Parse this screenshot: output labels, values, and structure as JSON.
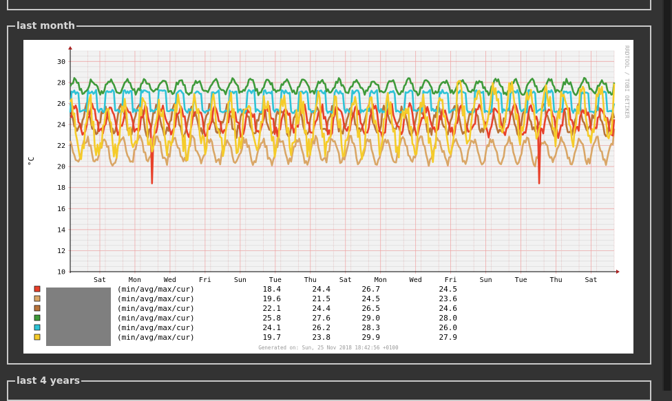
{
  "sections": [
    {
      "title": "last month"
    },
    {
      "title": "last 4 years"
    }
  ],
  "chart_data": {
    "type": "line",
    "title": "",
    "ylabel": "°C",
    "xlabel": "",
    "ylim": [
      10,
      31
    ],
    "yticks": [
      10,
      12,
      14,
      16,
      18,
      20,
      22,
      24,
      26,
      28,
      30
    ],
    "x_tick_labels": [
      "Sat",
      "Mon",
      "Wed",
      "Fri",
      "Sun",
      "Tue",
      "Thu",
      "Sat",
      "Mon",
      "Wed",
      "Fri",
      "Sun",
      "Tue",
      "Thu",
      "Sat"
    ],
    "grid": true,
    "watermark": "RRDTOOL / TOBI OETIKER",
    "footer": "Generated on: Sun, 25 Nov 2018 18:42:56 +0100",
    "legend_suffix": "(min/avg/max/cur)",
    "series": [
      {
        "color": "#e8402a",
        "min": "18.4",
        "avg": "24.4",
        "max": "26.7",
        "cur": "24.5"
      },
      {
        "color": "#d9a666",
        "min": "19.6",
        "avg": "21.5",
        "max": "24.5",
        "cur": "23.6"
      },
      {
        "color": "#b8733a",
        "min": "22.1",
        "avg": "24.4",
        "max": "26.5",
        "cur": "24.6"
      },
      {
        "color": "#3f9a3a",
        "min": "25.8",
        "avg": "27.6",
        "max": "29.0",
        "cur": "28.0"
      },
      {
        "color": "#2ec3d6",
        "min": "24.1",
        "avg": "26.2",
        "max": "28.3",
        "cur": "26.0"
      },
      {
        "color": "#f5cc2a",
        "min": "19.7",
        "avg": "23.8",
        "max": "29.9",
        "cur": "27.9"
      }
    ]
  }
}
